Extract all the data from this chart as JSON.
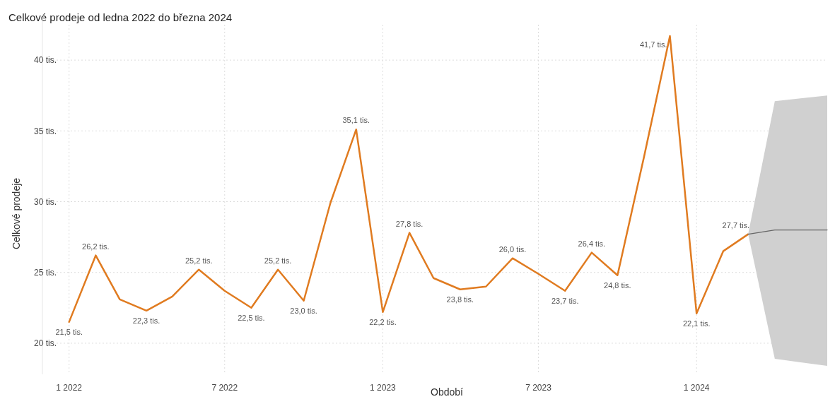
{
  "chart_data": {
    "type": "line",
    "title": "Celkové prodeje od ledna 2022 do března 2024",
    "xlabel": "Období",
    "ylabel": "Celkové prodeje",
    "xlim": [
      "2021-12",
      "2024-06"
    ],
    "xticks": [
      {
        "value": "2022-01",
        "label": "1 2022"
      },
      {
        "value": "2022-07",
        "label": "7 2022"
      },
      {
        "value": "2023-01",
        "label": "1 2023"
      },
      {
        "value": "2023-07",
        "label": "7 2023"
      },
      {
        "value": "2024-01",
        "label": "1 2024"
      }
    ],
    "ylim": [
      17.8,
      43
    ],
    "yticks": [
      {
        "value": 20,
        "label": "20 tis."
      },
      {
        "value": 25,
        "label": "25 tis."
      },
      {
        "value": 30,
        "label": "30 tis."
      },
      {
        "value": 35,
        "label": "35 tis."
      },
      {
        "value": 40,
        "label": "40 tis."
      }
    ],
    "grid": true,
    "line_style": "solid",
    "series": [
      {
        "color": "#e07b20",
        "x": [
          "2022-01",
          "2022-02",
          "2022-03",
          "2022-04",
          "2022-05",
          "2022-06",
          "2022-07",
          "2022-08",
          "2022-09",
          "2022-10",
          "2022-11",
          "2022-12",
          "2023-01",
          "2023-02",
          "2023-03",
          "2023-04",
          "2023-05",
          "2023-06",
          "2023-07",
          "2023-08",
          "2023-09",
          "2023-10",
          "2023-11",
          "2023-12",
          "2024-01",
          "2024-02",
          "2024-03"
        ],
        "values": [
          21.5,
          26.2,
          23.1,
          22.3,
          23.3,
          25.2,
          23.7,
          22.5,
          25.2,
          23.0,
          29.9,
          35.1,
          22.2,
          27.8,
          24.6,
          23.8,
          24.0,
          26.0,
          24.9,
          23.7,
          26.4,
          24.8,
          33.2,
          41.7,
          22.1,
          26.5,
          27.7
        ],
        "value_labels": [
          "21,5 tis.",
          "26,2 tis.",
          null,
          "22,3 tis.",
          null,
          "25,2 tis.",
          null,
          "22,5 tis.",
          "25,2 tis.",
          "23,0 tis.",
          null,
          "35,1 tis.",
          "22,2 tis.",
          "27,8 tis.",
          null,
          "23,8 tis.",
          null,
          "26,0 tis.",
          null,
          "23,7 tis.",
          "26,4 tis.",
          "24,8 tis.",
          null,
          "41,7 tis.",
          "22,1 tis.",
          null,
          "27,7 tis."
        ]
      },
      {
        "color": "#666666",
        "x": [
          "2024-03",
          "2024-04",
          "2024-05",
          "2024-06"
        ],
        "values": [
          27.7,
          28.0,
          28.0,
          28.0
        ],
        "lower": [
          27.7,
          18.9,
          18.65,
          18.4
        ],
        "upper": [
          27.7,
          37.1,
          37.3,
          37.5
        ]
      }
    ]
  }
}
